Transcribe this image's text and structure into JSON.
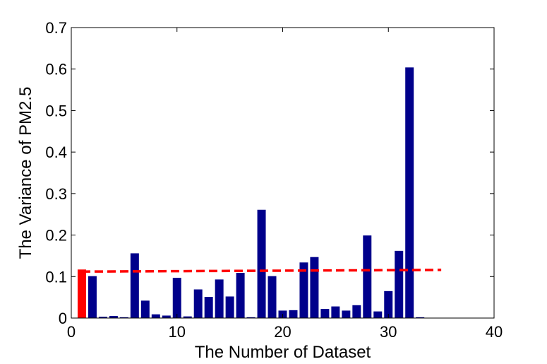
{
  "chart_data": {
    "type": "bar",
    "xlabel": "The Number of Dataset",
    "ylabel": "The Variance of PM2.5",
    "xlim": [
      0,
      40
    ],
    "ylim": [
      0,
      0.7
    ],
    "xticks": [
      0,
      10,
      20,
      30,
      40
    ],
    "yticks": [
      0,
      0.1,
      0.2,
      0.3,
      0.4,
      0.5,
      0.6,
      0.7
    ],
    "xtick_labels": [
      "0",
      "10",
      "20",
      "30",
      "40"
    ],
    "ytick_labels": [
      "0",
      "0.1",
      "0.2",
      "0.3",
      "0.4",
      "0.5",
      "0.6",
      "0.7"
    ],
    "grid": false,
    "colors": {
      "bar": "#00008B",
      "highlight_bar": "#FF0000",
      "reference_line": "#FF0000"
    },
    "highlighted_indices": [
      1
    ],
    "x": [
      1,
      2,
      3,
      4,
      5,
      6,
      7,
      8,
      9,
      10,
      11,
      12,
      13,
      14,
      15,
      16,
      17,
      18,
      19,
      20,
      21,
      22,
      23,
      24,
      25,
      26,
      27,
      28,
      29,
      30,
      31,
      32,
      33
    ],
    "values": [
      0.117,
      0.101,
      0.003,
      0.005,
      0.002,
      0.156,
      0.042,
      0.009,
      0.006,
      0.097,
      0.004,
      0.069,
      0.051,
      0.093,
      0.052,
      0.109,
      0.002,
      0.261,
      0.101,
      0.018,
      0.019,
      0.134,
      0.147,
      0.022,
      0.028,
      0.018,
      0.031,
      0.199,
      0.016,
      0.065,
      0.162,
      0.604,
      0.002
    ],
    "reference_line": {
      "style": "dashed",
      "x": [
        1,
        35
      ],
      "y": [
        0.112,
        0.116
      ]
    }
  }
}
